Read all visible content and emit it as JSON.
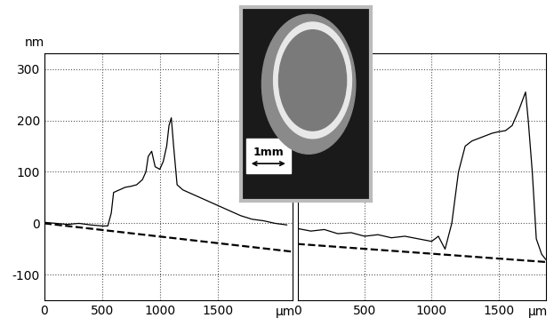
{
  "chart_data": [
    {
      "type": "line",
      "ylabel": "nm",
      "xlabel": "µm",
      "xlim": [
        0,
        2150
      ],
      "xticks": [
        0,
        500,
        1000,
        1500
      ],
      "ylim": [
        -150,
        330
      ],
      "yticks": [
        -100,
        0,
        100,
        200,
        300
      ],
      "grid": true,
      "series": [
        {
          "x": [
            0,
            100,
            200,
            300,
            400,
            500,
            550,
            580,
            600,
            650,
            700,
            750,
            800,
            850,
            880,
            900,
            930,
            960,
            1000,
            1030,
            1060,
            1080,
            1100,
            1120,
            1150,
            1200,
            1300,
            1400,
            1500,
            1600,
            1700,
            1800,
            1900,
            2000,
            2100
          ],
          "values": [
            2,
            0,
            -2,
            0,
            -3,
            -5,
            -5,
            20,
            60,
            65,
            70,
            72,
            75,
            85,
            100,
            130,
            140,
            110,
            105,
            120,
            150,
            190,
            205,
            150,
            75,
            65,
            55,
            45,
            35,
            25,
            15,
            8,
            5,
            0,
            -3
          ],
          "color": "#000000",
          "line_style": "solid"
        },
        {
          "x": [
            0,
            2150
          ],
          "values": [
            0,
            -55
          ],
          "color": "#000000",
          "line_style": "dashed"
        }
      ]
    },
    {
      "type": "line",
      "xlabel": "µm",
      "tick_labels": "x",
      "xlim": [
        0,
        1850
      ],
      "xticks": [
        0,
        500,
        1000,
        1500
      ],
      "ylim": [
        -150,
        330
      ],
      "yticks": [
        -100,
        0,
        100,
        200,
        300
      ],
      "grid": true,
      "series": [
        {
          "x": [
            0,
            100,
            200,
            300,
            400,
            500,
            600,
            700,
            800,
            900,
            1000,
            1050,
            1100,
            1150,
            1200,
            1250,
            1300,
            1350,
            1400,
            1450,
            1500,
            1550,
            1600,
            1650,
            1700,
            1720,
            1750,
            1780,
            1820,
            1850
          ],
          "values": [
            -10,
            -15,
            -12,
            -20,
            -18,
            -25,
            -22,
            -28,
            -25,
            -30,
            -35,
            -25,
            -50,
            0,
            100,
            150,
            160,
            165,
            170,
            175,
            178,
            180,
            190,
            220,
            255,
            200,
            100,
            -30,
            -60,
            -70
          ],
          "color": "#000000",
          "line_style": "solid"
        },
        {
          "x": [
            0,
            1850
          ],
          "values": [
            -40,
            -75
          ],
          "color": "#000000",
          "line_style": "dashed"
        }
      ]
    }
  ],
  "inset": {
    "scale_label": "1mm"
  }
}
